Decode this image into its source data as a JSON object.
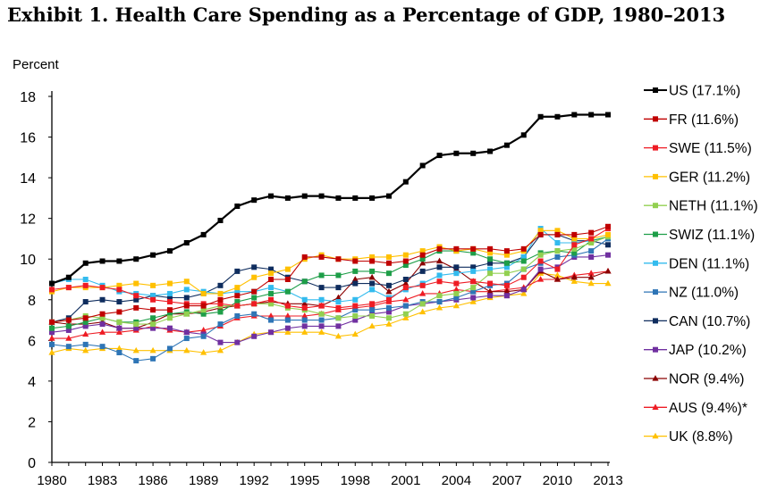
{
  "chart_data": {
    "type": "line",
    "title": "Exhibit 1. Health Care Spending as a Percentage of GDP, 1980–2013",
    "ylabel": "Percent",
    "xlabel": "",
    "ylim": [
      0,
      18
    ],
    "yticks": [
      0,
      2,
      4,
      6,
      8,
      10,
      12,
      14,
      16,
      18
    ],
    "x": [
      1980,
      1981,
      1982,
      1983,
      1984,
      1985,
      1986,
      1987,
      1988,
      1989,
      1990,
      1991,
      1992,
      1993,
      1994,
      1995,
      1996,
      1997,
      1998,
      1999,
      2000,
      2001,
      2002,
      2003,
      2004,
      2005,
      2006,
      2007,
      2008,
      2009,
      2010,
      2011,
      2012,
      2013
    ],
    "xticks": [
      1980,
      1983,
      1986,
      1989,
      1992,
      1995,
      1998,
      2001,
      2004,
      2007,
      2010,
      2013
    ],
    "legend_position": "right",
    "grid": false,
    "series": [
      {
        "name": "US (17.1%)",
        "color": "#000000",
        "marker": "square",
        "values": [
          8.8,
          9.1,
          9.8,
          9.9,
          9.9,
          10.0,
          10.2,
          10.4,
          10.8,
          11.2,
          11.9,
          12.6,
          12.9,
          13.1,
          13.0,
          13.1,
          13.1,
          13.0,
          13.0,
          13.0,
          13.1,
          13.8,
          14.6,
          15.1,
          15.2,
          15.2,
          15.3,
          15.6,
          16.1,
          17.0,
          17.0,
          17.1,
          17.1,
          17.1
        ]
      },
      {
        "name": "FR (11.6%)",
        "color": "#c00000",
        "marker": "square",
        "values": [
          6.9,
          7.0,
          7.1,
          7.3,
          7.4,
          7.6,
          7.5,
          7.5,
          7.7,
          7.7,
          8.0,
          8.2,
          8.4,
          9.0,
          9.0,
          10.1,
          10.1,
          10.0,
          9.9,
          9.9,
          9.8,
          9.9,
          10.2,
          10.5,
          10.5,
          10.5,
          10.5,
          10.4,
          10.5,
          11.2,
          11.2,
          11.2,
          11.3,
          11.6
        ]
      },
      {
        "name": "SWE (11.5%)",
        "color": "#ee1c24",
        "marker": "square",
        "values": [
          8.5,
          8.6,
          8.7,
          8.6,
          8.5,
          8.2,
          8.0,
          7.9,
          7.8,
          7.8,
          7.8,
          7.7,
          7.8,
          8.0,
          7.7,
          7.6,
          7.7,
          7.6,
          7.7,
          7.8,
          8.0,
          8.6,
          8.7,
          8.9,
          8.8,
          8.9,
          8.8,
          8.7,
          9.1,
          9.9,
          9.5,
          10.7,
          11.0,
          11.5
        ]
      },
      {
        "name": "GER (11.2%)",
        "color": "#ffc000",
        "marker": "square",
        "values": [
          8.4,
          8.6,
          8.6,
          8.6,
          8.7,
          8.8,
          8.7,
          8.8,
          8.9,
          8.3,
          8.3,
          8.6,
          9.1,
          9.3,
          9.5,
          10.0,
          10.2,
          10.0,
          10.0,
          10.1,
          10.1,
          10.2,
          10.4,
          10.6,
          10.4,
          10.5,
          10.3,
          10.2,
          10.4,
          11.4,
          11.4,
          11.0,
          11.0,
          11.2
        ]
      },
      {
        "name": "NETH (11.1%)",
        "color": "#92d050",
        "marker": "square",
        "values": [
          6.9,
          7.0,
          7.2,
          7.1,
          6.9,
          6.8,
          6.8,
          7.1,
          7.3,
          7.5,
          7.7,
          7.7,
          7.8,
          7.8,
          7.6,
          7.5,
          7.3,
          7.1,
          7.2,
          7.2,
          7.1,
          7.3,
          7.8,
          8.2,
          8.3,
          8.6,
          9.3,
          9.3,
          9.5,
          10.2,
          10.4,
          10.5,
          10.8,
          11.1
        ]
      },
      {
        "name": "SWIZ (11.1%)",
        "color": "#1e9e48",
        "marker": "square",
        "values": [
          6.6,
          6.7,
          6.9,
          7.1,
          6.9,
          6.9,
          7.1,
          7.3,
          7.4,
          7.3,
          7.4,
          7.9,
          8.1,
          8.3,
          8.4,
          8.9,
          9.2,
          9.2,
          9.4,
          9.4,
          9.3,
          9.7,
          10.0,
          10.4,
          10.4,
          10.3,
          10.0,
          9.8,
          9.9,
          10.3,
          10.4,
          10.3,
          10.9,
          11.1
        ]
      },
      {
        "name": "DEN (11.1%)",
        "color": "#33bbee",
        "marker": "square",
        "values": [
          8.8,
          9.0,
          9.0,
          8.7,
          8.4,
          8.3,
          8.2,
          8.3,
          8.5,
          8.4,
          8.3,
          8.4,
          8.4,
          8.6,
          8.4,
          8.0,
          8.0,
          7.9,
          8.0,
          8.5,
          8.1,
          8.5,
          8.8,
          9.2,
          9.3,
          9.4,
          9.5,
          9.6,
          10.1,
          11.5,
          10.8,
          10.8,
          10.9,
          11.1
        ]
      },
      {
        "name": "NZ (11.0%)",
        "color": "#2e75b6",
        "marker": "square",
        "values": [
          5.8,
          5.7,
          5.8,
          5.7,
          5.4,
          5.0,
          5.1,
          5.6,
          6.1,
          6.2,
          6.8,
          7.2,
          7.3,
          7.0,
          7.0,
          7.0,
          7.0,
          7.1,
          7.5,
          7.5,
          7.6,
          7.7,
          7.9,
          7.9,
          8.1,
          8.4,
          8.7,
          8.8,
          9.5,
          9.8,
          10.1,
          10.2,
          10.4,
          11.0
        ]
      },
      {
        "name": "CAN (10.7%)",
        "color": "#0f2d5e",
        "marker": "square",
        "values": [
          6.9,
          7.1,
          7.9,
          8.0,
          7.9,
          8.0,
          8.2,
          8.1,
          8.1,
          8.3,
          8.7,
          9.4,
          9.6,
          9.5,
          9.1,
          8.9,
          8.6,
          8.6,
          8.8,
          8.8,
          8.7,
          9.0,
          9.4,
          9.6,
          9.6,
          9.6,
          9.8,
          9.8,
          10.1,
          11.2,
          11.2,
          10.9,
          10.9,
          10.7
        ]
      },
      {
        "name": "JAP (10.2%)",
        "color": "#7030a0",
        "marker": "square",
        "values": [
          6.4,
          6.5,
          6.7,
          6.8,
          6.6,
          6.6,
          6.6,
          6.6,
          6.4,
          6.3,
          5.9,
          5.9,
          6.2,
          6.4,
          6.6,
          6.7,
          6.7,
          6.7,
          7.0,
          7.3,
          7.4,
          7.7,
          7.8,
          7.9,
          8.0,
          8.1,
          8.2,
          8.2,
          8.5,
          9.5,
          9.6,
          10.1,
          10.1,
          10.2
        ]
      },
      {
        "name": "NOR (9.4%)",
        "color": "#8b0000",
        "marker": "triangle",
        "values": [
          6.9,
          6.8,
          6.8,
          6.9,
          6.6,
          6.6,
          6.9,
          7.3,
          7.3,
          7.4,
          7.6,
          7.7,
          7.8,
          7.9,
          7.8,
          7.8,
          7.7,
          8.1,
          9.0,
          9.1,
          8.4,
          8.8,
          9.8,
          9.9,
          9.5,
          8.9,
          8.4,
          8.4,
          8.5,
          9.4,
          9.0,
          9.1,
          9.1,
          9.4
        ]
      },
      {
        "name": "AUS (9.4%)*",
        "color": "#ee1c24",
        "marker": "triangle",
        "values": [
          6.1,
          6.1,
          6.3,
          6.4,
          6.4,
          6.5,
          6.7,
          6.5,
          6.4,
          6.5,
          6.7,
          7.1,
          7.2,
          7.2,
          7.2,
          7.2,
          7.3,
          7.5,
          7.6,
          7.7,
          7.9,
          8.0,
          8.3,
          8.3,
          8.5,
          8.4,
          8.4,
          8.5,
          8.6,
          9.0,
          9.0,
          9.2,
          9.3,
          9.4
        ]
      },
      {
        "name": "UK (8.8%)",
        "color": "#ffc000",
        "marker": "triangle",
        "values": [
          5.4,
          5.6,
          5.5,
          5.6,
          5.6,
          5.5,
          5.5,
          5.5,
          5.5,
          5.4,
          5.5,
          5.9,
          6.3,
          6.4,
          6.4,
          6.4,
          6.4,
          6.2,
          6.3,
          6.7,
          6.8,
          7.1,
          7.4,
          7.6,
          7.7,
          7.9,
          8.1,
          8.2,
          8.3,
          9.3,
          9.2,
          8.9,
          8.8,
          8.8
        ]
      }
    ]
  }
}
